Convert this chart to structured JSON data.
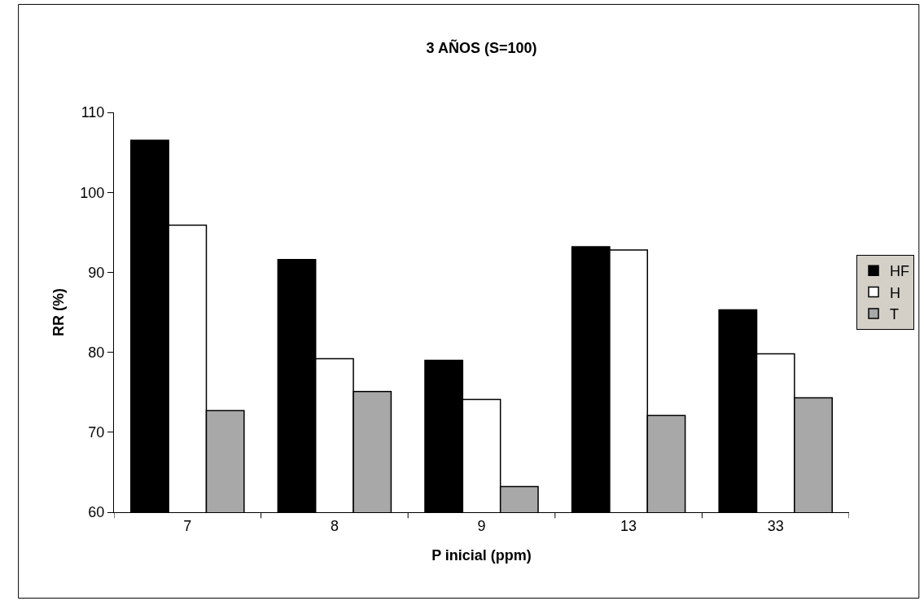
{
  "chart_data": {
    "type": "bar",
    "title": "3 AÑOS (S=100)",
    "xlabel": "P inicial (ppm)",
    "ylabel": "RR (%)",
    "categories": [
      "7",
      "8",
      "9",
      "13",
      "33"
    ],
    "series": [
      {
        "name": "HF",
        "color": "#000000",
        "values": [
          106.5,
          91.6,
          79.0,
          93.2,
          85.3
        ]
      },
      {
        "name": "H",
        "color": "#ffffff",
        "values": [
          95.9,
          79.2,
          74.1,
          92.8,
          79.8
        ]
      },
      {
        "name": "T",
        "color": "#a8a8a8",
        "values": [
          72.7,
          75.1,
          63.2,
          72.1,
          74.3
        ]
      }
    ],
    "ylim": [
      60,
      110
    ],
    "yticks": [
      60,
      70,
      80,
      90,
      100,
      110
    ],
    "grid": false,
    "legend": "right"
  }
}
